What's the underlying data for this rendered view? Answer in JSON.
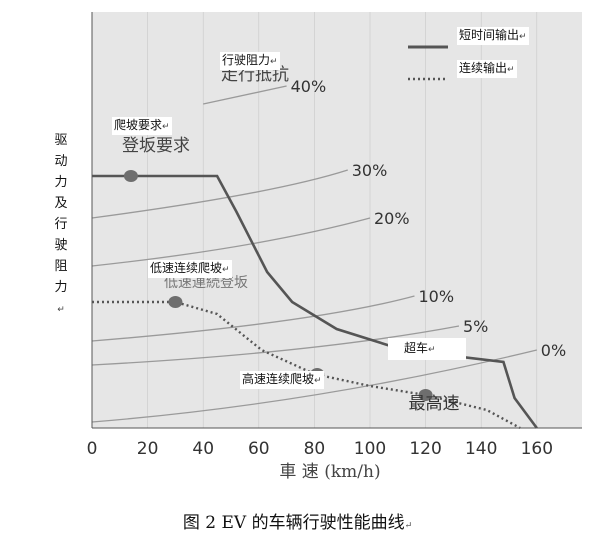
{
  "figure": {
    "caption": "图 2 EV 的车辆行驶性能曲线",
    "return_mark": "↵",
    "y_axis_label": "驱动力及行驶阻力",
    "x_axis_label": "車  速  (km/h)",
    "overlay_labels": {
      "resistance": "行驶阻力",
      "climbing_requirement": "爬坡要求",
      "low_speed_climb": "低速连续爬坡",
      "high_speed_climb": "高速连续爬坡",
      "overtake": "超车",
      "legend_short": "短时间输出",
      "legend_continuous": "连续输出"
    },
    "original_labels": {
      "resistance": "走行抵抗",
      "climbing_requirement": "登坂要求",
      "low_speed_climb": "低速連続登坂",
      "top_speed": "最高速"
    },
    "colors": {
      "curves": "#9a9a9a",
      "output": "#555555",
      "background": "#e6e6e6",
      "grid": "#c8c8c8"
    }
  },
  "chart_data": {
    "type": "line",
    "xlabel": "車  速  (km/h)",
    "ylabel": "驱动力及行驶阻力",
    "xlim": [
      0,
      170
    ],
    "x_ticks": [
      0,
      20,
      40,
      60,
      80,
      100,
      120,
      140,
      160
    ],
    "grid": true,
    "legend": "top-right",
    "series": [
      {
        "name": "短时间输出",
        "style": "solid",
        "x": [
          0,
          45,
          52,
          63,
          72,
          88,
          112,
          148,
          152,
          160
        ],
        "y": [
          84,
          84,
          72,
          52,
          42,
          33,
          26,
          22,
          10,
          0
        ]
      },
      {
        "name": "连续输出",
        "style": "dotted",
        "x": [
          0,
          30,
          45,
          61,
          80,
          100,
          120,
          142,
          154
        ],
        "y": [
          42,
          42,
          38,
          26,
          18,
          14,
          11,
          6,
          0
        ]
      }
    ],
    "resistance_curves": [
      {
        "label": "40%",
        "x": [
          40,
          55,
          70
        ],
        "y": [
          108,
          111,
          114
        ]
      },
      {
        "label": "30%",
        "x": [
          0,
          65,
          92
        ],
        "y": [
          70,
          78,
          86
        ]
      },
      {
        "label": "20%",
        "x": [
          0,
          60,
          100
        ],
        "y": [
          54,
          60,
          70
        ]
      },
      {
        "label": "10%",
        "x": [
          0,
          80,
          116
        ],
        "y": [
          29,
          35,
          44
        ]
      },
      {
        "label": "5%",
        "x": [
          0,
          80,
          132
        ],
        "y": [
          21,
          25,
          34
        ]
      },
      {
        "label": "0%",
        "x": [
          0,
          80,
          160
        ],
        "y": [
          2,
          8,
          26
        ]
      }
    ],
    "markers": [
      {
        "label": "登坂要求",
        "x": 14,
        "y": 84
      },
      {
        "label": "低速連続登坂",
        "x": 30,
        "y": 42
      },
      {
        "label": "高速连续爬坡",
        "x": 81,
        "y": 18
      },
      {
        "label": "最高速",
        "x": 120,
        "y": 11
      }
    ]
  }
}
